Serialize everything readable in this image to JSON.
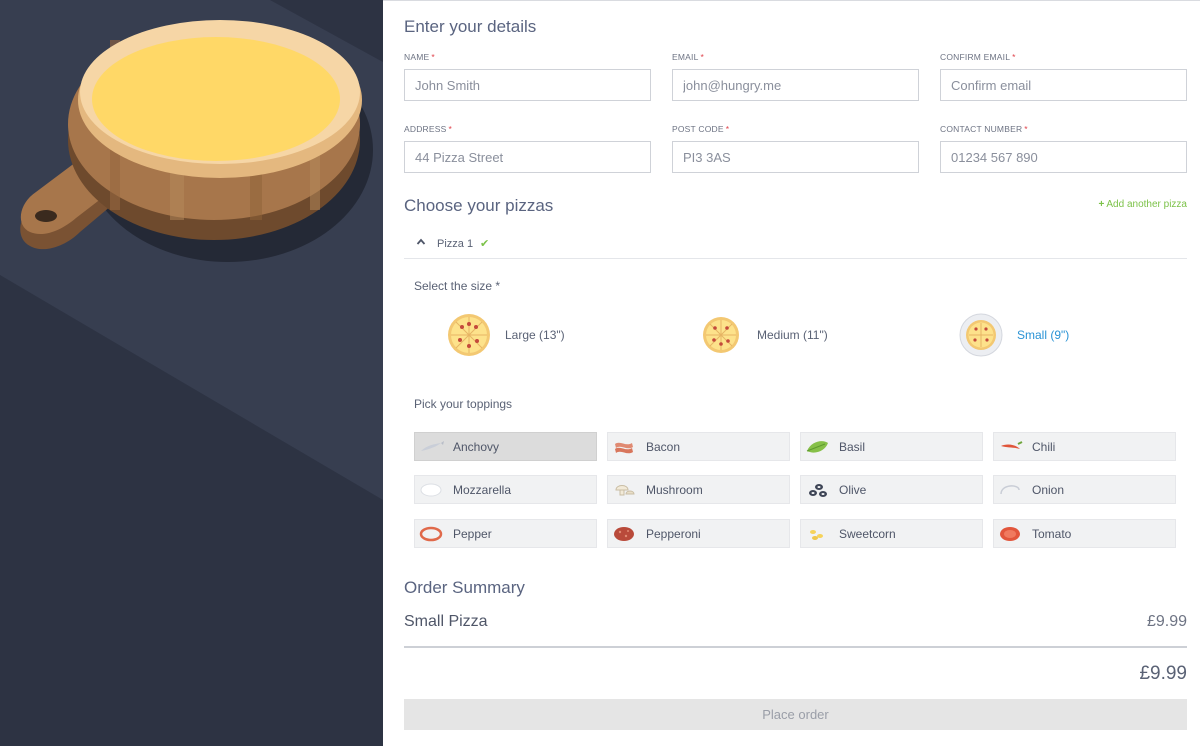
{
  "details": {
    "title": "Enter your details",
    "required_mark": "*",
    "fields": {
      "name": {
        "label": "NAME",
        "placeholder": "John Smith"
      },
      "email": {
        "label": "EMAIL",
        "placeholder": "john@hungry.me"
      },
      "confirm_email": {
        "label": "CONFIRM EMAIL",
        "placeholder": "Confirm email"
      },
      "address": {
        "label": "ADDRESS",
        "placeholder": "44 Pizza Street"
      },
      "post_code": {
        "label": "POST CODE",
        "placeholder": "PI3 3AS"
      },
      "contact_number": {
        "label": "CONTACT NUMBER",
        "placeholder": "01234 567 890"
      }
    }
  },
  "pizzas": {
    "title": "Choose your pizzas",
    "add_label": "Add another pizza",
    "add_plus": "+",
    "tab": {
      "label": "Pizza 1",
      "check": "✔",
      "icon": "chevron-up-icon"
    },
    "size_heading": "Select the size *",
    "sizes": [
      {
        "label": "Large (13\")",
        "selected": false
      },
      {
        "label": "Medium (11\")",
        "selected": false
      },
      {
        "label": "Small (9\")",
        "selected": true
      }
    ],
    "toppings_heading": "Pick your toppings",
    "toppings": [
      {
        "label": "Anchovy",
        "icon": "anchovy-icon",
        "active": true
      },
      {
        "label": "Bacon",
        "icon": "bacon-icon",
        "active": false
      },
      {
        "label": "Basil",
        "icon": "basil-icon",
        "active": false
      },
      {
        "label": "Chili",
        "icon": "chili-icon",
        "active": false
      },
      {
        "label": "Mozzarella",
        "icon": "mozzarella-icon",
        "active": false
      },
      {
        "label": "Mushroom",
        "icon": "mushroom-icon",
        "active": false
      },
      {
        "label": "Olive",
        "icon": "olive-icon",
        "active": false
      },
      {
        "label": "Onion",
        "icon": "onion-icon",
        "active": false
      },
      {
        "label": "Pepper",
        "icon": "pepper-icon",
        "active": false
      },
      {
        "label": "Pepperoni",
        "icon": "pepperoni-icon",
        "active": false
      },
      {
        "label": "Sweetcorn",
        "icon": "sweetcorn-icon",
        "active": false
      },
      {
        "label": "Tomato",
        "icon": "tomato-icon",
        "active": false
      }
    ]
  },
  "summary": {
    "title": "Order Summary",
    "lines": [
      {
        "item": "Small Pizza",
        "price": "£9.99"
      }
    ],
    "total": "£9.99",
    "place_order": "Place order"
  },
  "colors": {
    "dark_panel": "#2d3343",
    "accent_green": "#7cc249",
    "selected_blue": "#2a93d5",
    "required_red": "#e0434c"
  }
}
